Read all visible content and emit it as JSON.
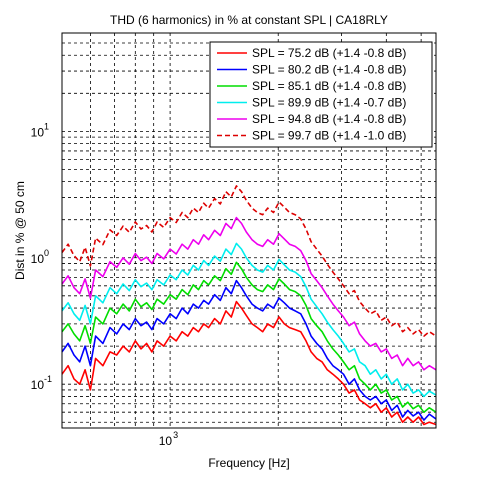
{
  "chart_data": {
    "type": "line",
    "title": "THD (6 harmonics) in % at constant SPL | CA18RLY",
    "xlabel": "Frequency [Hz]",
    "ylabel": "Dist in % @ 50 cm",
    "x_scale": "log",
    "y_scale": "log",
    "xlim": [
      500,
      5500
    ],
    "ylim": [
      0.045,
      60
    ],
    "x_ticks": [
      {
        "value": 1000,
        "base": "10",
        "exp": "3"
      }
    ],
    "y_ticks": [
      {
        "value": 0.1,
        "label": "10",
        "exp": "-1"
      },
      {
        "value": 1,
        "label": "10",
        "exp": "0"
      },
      {
        "value": 10,
        "label": "10",
        "exp": "1"
      }
    ],
    "grid": "major and minor, dashed black",
    "legend_position": "top-right",
    "x": [
      500,
      520,
      540,
      560,
      580,
      600,
      620,
      650,
      680,
      710,
      740,
      770,
      800,
      830,
      860,
      890,
      920,
      960,
      1000,
      1040,
      1080,
      1120,
      1160,
      1200,
      1240,
      1280,
      1330,
      1380,
      1430,
      1480,
      1530,
      1580,
      1630,
      1690,
      1750,
      1810,
      1870,
      1940,
      2010,
      2080,
      2150,
      2230,
      2310,
      2390,
      2470,
      2560,
      2650,
      2740,
      2840,
      2940,
      3040,
      3150,
      3260,
      3370,
      3490,
      3610,
      3740,
      3870,
      4000,
      4140,
      4290,
      4440,
      4590,
      4750,
      4920,
      5090,
      5270,
      5500
    ],
    "series": [
      {
        "name": "SPL = 75.2 dB (+1.4 -0.8 dB)",
        "color": "#ff0000",
        "dash": "solid",
        "values": [
          0.12,
          0.14,
          0.11,
          0.1,
          0.13,
          0.09,
          0.16,
          0.14,
          0.18,
          0.17,
          0.2,
          0.18,
          0.22,
          0.19,
          0.21,
          0.18,
          0.22,
          0.2,
          0.24,
          0.22,
          0.26,
          0.24,
          0.28,
          0.26,
          0.3,
          0.28,
          0.33,
          0.3,
          0.38,
          0.34,
          0.45,
          0.4,
          0.35,
          0.3,
          0.28,
          0.26,
          0.3,
          0.28,
          0.34,
          0.3,
          0.28,
          0.27,
          0.26,
          0.22,
          0.18,
          0.16,
          0.15,
          0.13,
          0.12,
          0.11,
          0.1,
          0.085,
          0.09,
          0.075,
          0.07,
          0.065,
          0.07,
          0.06,
          0.065,
          0.055,
          0.06,
          0.05,
          0.055,
          0.05,
          0.055,
          0.048,
          0.05,
          0.048
        ]
      },
      {
        "name": "SPL = 80.2 dB (+1.4 -0.8 dB)",
        "color": "#0000ff",
        "dash": "solid",
        "values": [
          0.18,
          0.21,
          0.17,
          0.15,
          0.2,
          0.14,
          0.24,
          0.21,
          0.28,
          0.25,
          0.3,
          0.27,
          0.33,
          0.29,
          0.31,
          0.27,
          0.33,
          0.3,
          0.36,
          0.33,
          0.4,
          0.36,
          0.43,
          0.4,
          0.46,
          0.43,
          0.51,
          0.46,
          0.58,
          0.52,
          0.66,
          0.58,
          0.5,
          0.43,
          0.4,
          0.38,
          0.43,
          0.4,
          0.48,
          0.44,
          0.4,
          0.38,
          0.36,
          0.3,
          0.24,
          0.21,
          0.19,
          0.16,
          0.14,
          0.13,
          0.12,
          0.1,
          0.11,
          0.09,
          0.08,
          0.075,
          0.08,
          0.07,
          0.075,
          0.062,
          0.068,
          0.055,
          0.062,
          0.056,
          0.06,
          0.052,
          0.058,
          0.053
        ]
      },
      {
        "name": "SPL = 85.1 dB (+1.4 -0.8 dB)",
        "color": "#00dd00",
        "dash": "solid",
        "values": [
          0.26,
          0.3,
          0.25,
          0.22,
          0.29,
          0.21,
          0.34,
          0.3,
          0.4,
          0.36,
          0.43,
          0.38,
          0.47,
          0.41,
          0.44,
          0.39,
          0.47,
          0.43,
          0.51,
          0.47,
          0.56,
          0.51,
          0.61,
          0.56,
          0.66,
          0.61,
          0.72,
          0.66,
          0.82,
          0.74,
          0.92,
          0.82,
          0.7,
          0.61,
          0.56,
          0.54,
          0.61,
          0.56,
          0.68,
          0.62,
          0.56,
          0.54,
          0.5,
          0.42,
          0.33,
          0.29,
          0.26,
          0.22,
          0.19,
          0.17,
          0.15,
          0.13,
          0.14,
          0.11,
          0.1,
          0.09,
          0.1,
          0.085,
          0.09,
          0.075,
          0.08,
          0.066,
          0.072,
          0.064,
          0.068,
          0.06,
          0.065,
          0.06
        ]
      },
      {
        "name": "SPL = 89.9 dB (+1.4 -0.7 dB)",
        "color": "#00eeee",
        "dash": "solid",
        "values": [
          0.38,
          0.44,
          0.36,
          0.32,
          0.42,
          0.3,
          0.5,
          0.44,
          0.58,
          0.52,
          0.62,
          0.55,
          0.67,
          0.59,
          0.63,
          0.56,
          0.67,
          0.61,
          0.73,
          0.67,
          0.8,
          0.73,
          0.87,
          0.8,
          0.95,
          0.87,
          1.03,
          0.94,
          1.17,
          1.06,
          1.3,
          1.17,
          1.0,
          0.87,
          0.8,
          0.77,
          0.87,
          0.8,
          0.97,
          0.88,
          0.8,
          0.77,
          0.71,
          0.59,
          0.47,
          0.41,
          0.36,
          0.31,
          0.27,
          0.24,
          0.21,
          0.18,
          0.19,
          0.15,
          0.14,
          0.12,
          0.13,
          0.11,
          0.12,
          0.1,
          0.11,
          0.09,
          0.1,
          0.085,
          0.09,
          0.08,
          0.088,
          0.082
        ]
      },
      {
        "name": "SPL = 94.8 dB (+1.4 -0.8 dB)",
        "color": "#ee00ee",
        "dash": "solid",
        "values": [
          0.62,
          0.72,
          0.58,
          0.52,
          0.68,
          0.48,
          0.8,
          0.71,
          0.93,
          0.84,
          1.0,
          0.89,
          1.08,
          0.95,
          1.01,
          0.9,
          1.08,
          0.98,
          1.17,
          1.07,
          1.28,
          1.17,
          1.39,
          1.28,
          1.52,
          1.39,
          1.65,
          1.5,
          1.87,
          1.7,
          2.08,
          1.87,
          1.6,
          1.39,
          1.28,
          1.23,
          1.39,
          1.28,
          1.55,
          1.41,
          1.28,
          1.23,
          1.14,
          0.95,
          0.75,
          0.66,
          0.58,
          0.5,
          0.43,
          0.38,
          0.34,
          0.29,
          0.31,
          0.25,
          0.22,
          0.2,
          0.21,
          0.18,
          0.19,
          0.16,
          0.17,
          0.14,
          0.16,
          0.14,
          0.15,
          0.13,
          0.14,
          0.13
        ]
      },
      {
        "name": "SPL = 99.7 dB (+1.4 -1.0 dB)",
        "color": "#dd0000",
        "dash": "dashed",
        "values": [
          1.1,
          1.28,
          1.04,
          0.93,
          1.21,
          0.86,
          1.43,
          1.27,
          1.66,
          1.5,
          1.78,
          1.59,
          1.92,
          1.69,
          1.8,
          1.6,
          1.92,
          1.74,
          2.08,
          1.9,
          2.28,
          2.08,
          2.47,
          2.28,
          2.7,
          2.47,
          2.94,
          2.67,
          3.33,
          3.03,
          3.7,
          3.33,
          2.85,
          2.47,
          2.28,
          2.19,
          2.47,
          2.28,
          2.76,
          2.51,
          2.28,
          2.19,
          2.03,
          1.69,
          1.34,
          1.17,
          1.03,
          0.89,
          0.77,
          0.68,
          0.6,
          0.52,
          0.55,
          0.45,
          0.4,
          0.36,
          0.38,
          0.32,
          0.34,
          0.29,
          0.31,
          0.26,
          0.28,
          0.25,
          0.27,
          0.24,
          0.26,
          0.24
        ]
      }
    ]
  }
}
